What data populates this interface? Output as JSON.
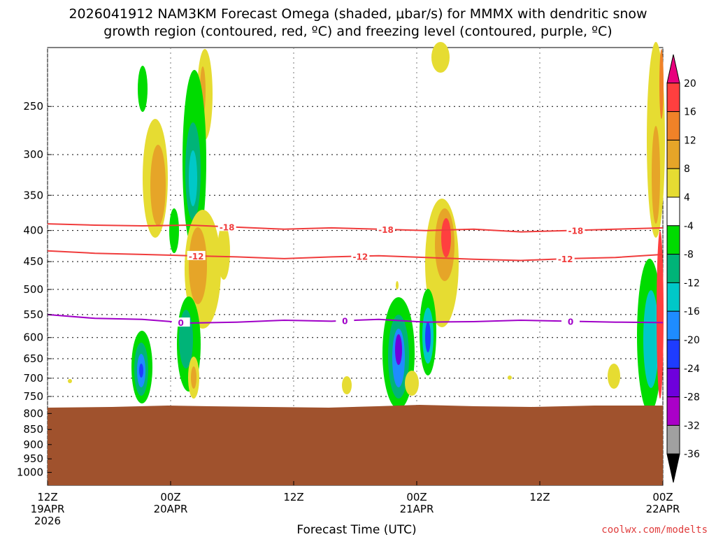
{
  "chart_data": {
    "type": "heatmap",
    "title_line1": "2026041912 NAM3KM Forecast Omega (shaded, μbar/s) for MMMX with dendritic snow",
    "title_line2": "growth region (contoured, red, ºC) and freezing level (contoured, purple, ºC)",
    "xlabel": "Forecast Time (UTC)",
    "credit": "coolwx.com/modelts",
    "x_hours": [
      0,
      12,
      24,
      36,
      48,
      60,
      72
    ],
    "x_ticks": [
      {
        "hour": 0,
        "line1": "12Z",
        "line2": "19APR",
        "line3": "2026"
      },
      {
        "hour": 12,
        "line1": "00Z",
        "line2": "20APR",
        "line3": ""
      },
      {
        "hour": 24,
        "line1": "12Z",
        "line2": "",
        "line3": ""
      },
      {
        "hour": 36,
        "line1": "00Z",
        "line2": "21APR",
        "line3": ""
      },
      {
        "hour": 48,
        "line1": "12Z",
        "line2": "",
        "line3": ""
      },
      {
        "hour": 60,
        "line1": "00Z",
        "line2": "22APR",
        "line3": ""
      }
    ],
    "y_pressure_ticks": [
      "250",
      "300",
      "350",
      "400",
      "450",
      "500",
      "550",
      "600",
      "650",
      "700",
      "750",
      "800",
      "850",
      "900",
      "950",
      "1000"
    ],
    "ylim": [
      200,
      1050
    ],
    "surface_pressure_hpa": 780,
    "colorbar": {
      "labels": [
        "20",
        "16",
        "12",
        "8",
        "4",
        "-4",
        "-8",
        "-12",
        "-16",
        "-20",
        "-24",
        "-28",
        "-32",
        "-36"
      ],
      "colors": [
        "#e8007d",
        "#ff3f3f",
        "#f08228",
        "#e6a528",
        "#e6dc32",
        "#ffffff",
        "#00dc00",
        "#00b478",
        "#00c8c8",
        "#1e8cff",
        "#1e3cff",
        "#6e00dc",
        "#aa00c8",
        "#a0a0a0",
        "#000000"
      ]
    },
    "contours": [
      {
        "name": "-18",
        "color": "#f03c3c",
        "hpa": [
          390,
          392,
          393,
          392,
          395,
          398,
          396,
          398,
          400,
          398,
          402,
          400,
          398,
          396
        ],
        "labels": [
          {
            "text": "-18",
            "hour": 17.5
          },
          {
            "text": "-18",
            "hour": 33
          },
          {
            "text": "-18",
            "hour": 51.5
          }
        ]
      },
      {
        "name": "-12",
        "color": "#f03c3c",
        "hpa": [
          432,
          436,
          438,
          440,
          442,
          445,
          442,
          440,
          443,
          446,
          448,
          445,
          443,
          438
        ],
        "labels": [
          {
            "text": "-12",
            "hour": 14.5
          },
          {
            "text": "-12",
            "hour": 30.5
          },
          {
            "text": "-12",
            "hour": 50.5
          }
        ]
      },
      {
        "name": "0",
        "color": "#a000c8",
        "hpa": [
          550,
          558,
          560,
          568,
          566,
          562,
          564,
          560,
          566,
          565,
          562,
          564,
          566,
          567
        ],
        "labels": [
          {
            "text": "0",
            "hour": 13
          },
          {
            "text": "0",
            "hour": 29
          },
          {
            "text": "0",
            "hour": 51
          }
        ]
      }
    ]
  }
}
